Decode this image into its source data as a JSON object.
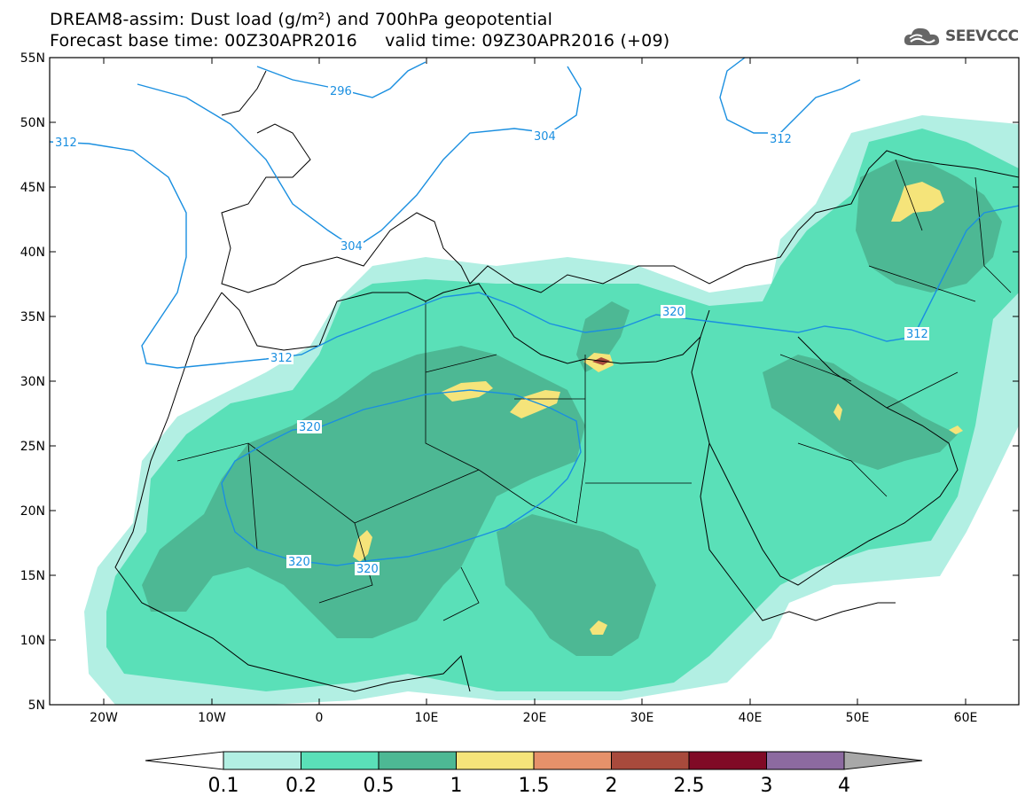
{
  "header": {
    "line1": "DREAM8-assim: Dust load (g/m²) and 700hPa geopotential",
    "line2": "Forecast base time: 00Z30APR2016     valid time: 09Z30APR2016 (+09)"
  },
  "logo": {
    "text": "SEEVCCC",
    "icon": "cloud-icon"
  },
  "map": {
    "lat_labels": [
      "55N",
      "50N",
      "45N",
      "40N",
      "35N",
      "30N",
      "25N",
      "20N",
      "15N",
      "10N",
      "5N"
    ],
    "lon_labels": [
      "20W",
      "10W",
      "0",
      "10E",
      "20E",
      "30E",
      "40E",
      "50E",
      "60E"
    ],
    "contours": [
      "296",
      "304",
      "304",
      "312",
      "312",
      "312",
      "320",
      "320",
      "320",
      "312"
    ]
  },
  "colorbar": {
    "labels": [
      "0.1",
      "0.2",
      "0.5",
      "1",
      "1.5",
      "2",
      "2.5",
      "3",
      "4"
    ],
    "colors": [
      "#ffffff",
      "#b2efe3",
      "#5ae0b8",
      "#4db894",
      "#f5e47a",
      "#e6916a",
      "#a84a3c",
      "#800a26",
      "#8c6aa0",
      "#a8a8a8"
    ]
  }
}
